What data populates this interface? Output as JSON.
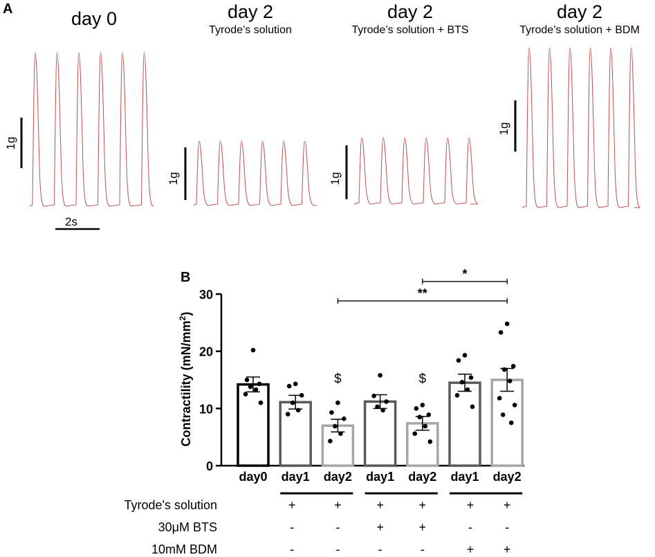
{
  "panel_a": {
    "letter": "A",
    "traces": [
      {
        "title": "day 0",
        "subtitle": "",
        "scale_label": "1g"
      },
      {
        "title": "day 2",
        "subtitle": "Tyrode’s solution",
        "scale_label": "1g"
      },
      {
        "title": "day 2",
        "subtitle": "Tyrode’s solution + BTS",
        "scale_label": "1g"
      },
      {
        "title": "day 2",
        "subtitle": "Tyrode’s solution + BDM",
        "scale_label": "1g"
      }
    ],
    "time_scale_label": "2s",
    "trace_color": "#c0504d"
  },
  "panel_b": {
    "letter": "B"
  },
  "chart_data": {
    "type": "bar",
    "title": "",
    "ylabel": "Contractility (mN/mm²)",
    "ylabel_main": "Contractility (mN/mm",
    "ylabel_sup": "2",
    "ylabel_end": ")",
    "ylim": [
      0,
      30
    ],
    "yticks": [
      "0",
      "10",
      "20",
      "30"
    ],
    "categories": [
      "day0",
      "day1",
      "day2",
      "day1",
      "day2",
      "day1",
      "day2"
    ],
    "values": [
      14.2,
      11.1,
      7.0,
      11.2,
      7.4,
      14.5,
      15.0
    ],
    "sem": [
      1.3,
      1.2,
      1.1,
      1.2,
      1.2,
      1.5,
      2.0
    ],
    "bar_colors": [
      "#000000",
      "#595959",
      "#a6a6a6",
      "#595959",
      "#a6a6a6",
      "#595959",
      "#a6a6a6"
    ],
    "points": [
      [
        20.2,
        15.0,
        14.3,
        13.8,
        13.3,
        12.5,
        11.0
      ],
      [
        14.3,
        13.9,
        12.3,
        11.0,
        9.7,
        9.0
      ],
      [
        11.0,
        9.3,
        8.2,
        6.9,
        5.6,
        4.3
      ],
      [
        15.8,
        12.2,
        11.2,
        10.3,
        9.7
      ],
      [
        10.6,
        10.0,
        8.9,
        8.5,
        6.9,
        5.6,
        4.2
      ],
      [
        19.3,
        18.4,
        15.4,
        14.6,
        13.3,
        12.3,
        10.3
      ],
      [
        24.8,
        23.3,
        17.4,
        16.8,
        14.8,
        11.8,
        10.6,
        8.9,
        7.5
      ]
    ],
    "annotations": [
      {
        "text": "$",
        "bar_index": 2,
        "y": 15.3
      },
      {
        "text": "$",
        "bar_index": 4,
        "y": 15.3
      }
    ],
    "significance": [
      {
        "from": 4,
        "to": 6,
        "label": "*",
        "y": 32.2
      },
      {
        "from": 2,
        "to": 6,
        "label": "**",
        "y": 28.8
      }
    ],
    "group_brackets": [
      [
        1,
        2
      ],
      [
        3,
        4
      ],
      [
        5,
        6
      ]
    ],
    "conditions": [
      {
        "label": "Tyrode's solution",
        "marks": [
          "",
          "+",
          "+",
          "+",
          "+",
          "+",
          "+"
        ]
      },
      {
        "label": "30μM BTS",
        "marks": [
          "",
          "-",
          "-",
          "+",
          "+",
          "-",
          "-"
        ]
      },
      {
        "label": "10mM BDM",
        "marks": [
          "",
          "-",
          "-",
          "-",
          "-",
          "+",
          "+"
        ]
      }
    ]
  }
}
